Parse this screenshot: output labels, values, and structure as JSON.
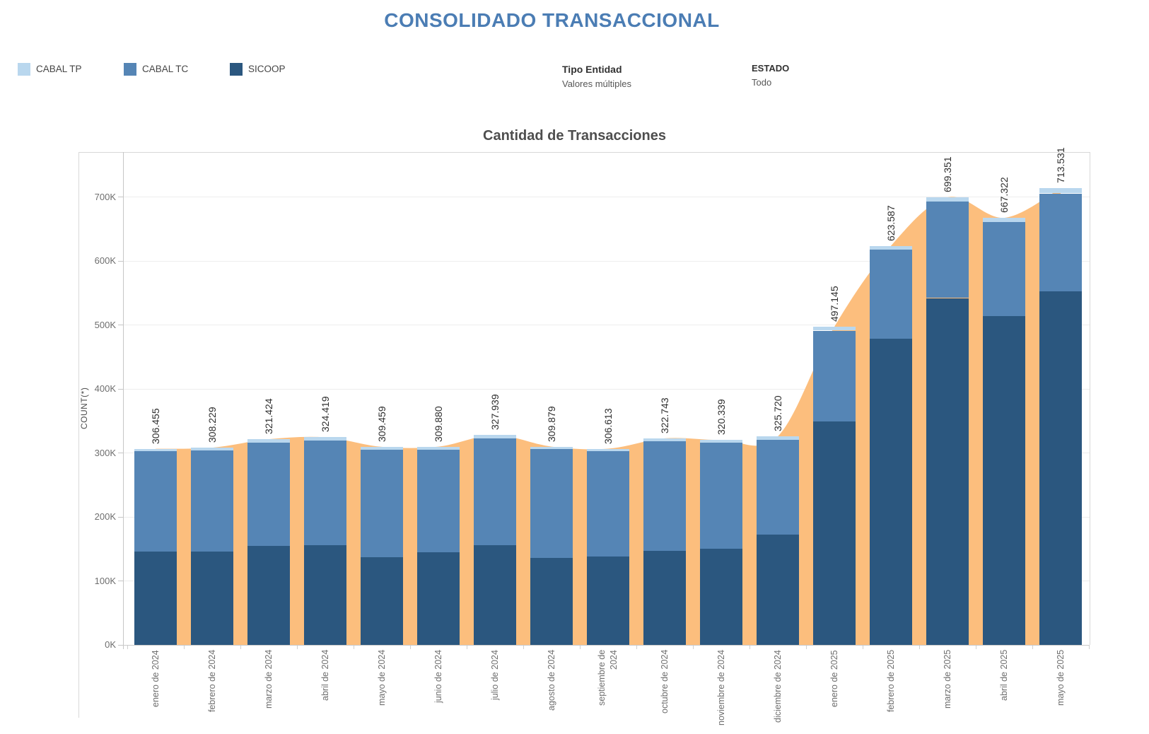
{
  "header": {
    "title": "CONSOLIDADO TRANSACCIONAL"
  },
  "legend": {
    "items": [
      {
        "label": "CABAL TP",
        "color": "#B9D7EE"
      },
      {
        "label": "CABAL TC",
        "color": "#5585B5"
      },
      {
        "label": "SICOOP",
        "color": "#2B577F"
      }
    ]
  },
  "filters": [
    {
      "name": "Tipo Entidad",
      "value": "Valores múltiples"
    },
    {
      "name": "ESTADO",
      "value": "Todo"
    }
  ],
  "chart_data": {
    "type": "bar",
    "subtype": "stacked-bars-with-smoothed-total-area",
    "title": "Cantidad de Transacciones",
    "xlabel": "",
    "ylabel": "COUNT(*)",
    "grid": true,
    "legend_position": "top-left",
    "ylim": [
      0,
      770000
    ],
    "y_ticks": [
      {
        "label": "0K",
        "value": 0
      },
      {
        "label": "100K",
        "value": 100000
      },
      {
        "label": "200K",
        "value": 200000
      },
      {
        "label": "300K",
        "value": 300000
      },
      {
        "label": "400K",
        "value": 400000
      },
      {
        "label": "500K",
        "value": 500000
      },
      {
        "label": "600K",
        "value": 600000
      },
      {
        "label": "700K",
        "value": 700000
      }
    ],
    "categories": [
      "enero de 2024",
      "febrero de 2024",
      "marzo de 2024",
      "abril de 2024",
      "mayo de 2024",
      "junio de 2024",
      "julio de 2024",
      "agosto de 2024",
      "septiembre de\n2024",
      "octubre de 2024",
      "noviembre de 2024",
      "diciembre de 2024",
      "enero de 2025",
      "febrero de 2025",
      "marzo de 2025",
      "abril de 2025",
      "mayo de 2025"
    ],
    "totals": [
      306455,
      308229,
      321424,
      324419,
      309459,
      309880,
      327939,
      309879,
      306613,
      322743,
      320339,
      325720,
      497145,
      623587,
      699351,
      667322,
      713531
    ],
    "total_labels": [
      "306.455",
      "308.229",
      "321.424",
      "324.419",
      "309.459",
      "309.880",
      "327.939",
      "309.879",
      "306.613",
      "322.743",
      "320.339",
      "325.720",
      "497.145",
      "623.587",
      "699.351",
      "667.322",
      "713.531"
    ],
    "series": [
      {
        "name": "SICOOP",
        "color": "#2B577F",
        "values": [
          146000,
          146000,
          155000,
          156000,
          137000,
          145000,
          156000,
          136000,
          138000,
          147000,
          150000,
          172000,
          349000,
          478000,
          542000,
          514000,
          553000
        ]
      },
      {
        "name": "CABAL TC",
        "color": "#5585B5",
        "values": [
          156455,
          158229,
          160924,
          162919,
          167959,
          160380,
          166939,
          169879,
          164613,
          170743,
          165839,
          148720,
          142145,
          139587,
          150351,
          146322,
          152531
        ]
      },
      {
        "name": "CABAL TP",
        "color": "#B9D7EE",
        "values": [
          4000,
          4000,
          5500,
          5500,
          4500,
          4500,
          5000,
          4000,
          4000,
          5000,
          4500,
          5000,
          6000,
          6000,
          7000,
          7000,
          8000
        ]
      }
    ],
    "area": {
      "name": "total-smoothed-area",
      "color": "#FCBE7D"
    }
  }
}
